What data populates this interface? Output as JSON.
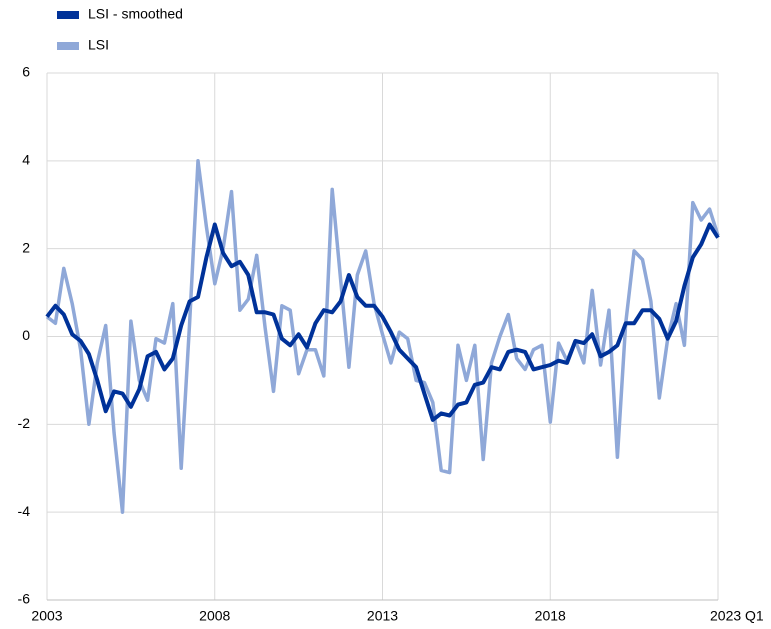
{
  "chart_data": {
    "type": "line",
    "x": [
      2003,
      2003.25,
      2003.5,
      2003.75,
      2004,
      2004.25,
      2004.5,
      2004.75,
      2005,
      2005.25,
      2005.5,
      2005.75,
      2006,
      2006.25,
      2006.5,
      2006.75,
      2007,
      2007.25,
      2007.5,
      2007.75,
      2008,
      2008.25,
      2008.5,
      2008.75,
      2009,
      2009.25,
      2009.5,
      2009.75,
      2010,
      2010.25,
      2010.5,
      2010.75,
      2011,
      2011.25,
      2011.5,
      2011.75,
      2012,
      2012.25,
      2012.5,
      2012.75,
      2013,
      2013.25,
      2013.5,
      2013.75,
      2014,
      2014.25,
      2014.5,
      2014.75,
      2015,
      2015.25,
      2015.5,
      2015.75,
      2016,
      2016.25,
      2016.5,
      2016.75,
      2017,
      2017.25,
      2017.5,
      2017.75,
      2018,
      2018.25,
      2018.5,
      2018.75,
      2019,
      2019.25,
      2019.5,
      2019.75,
      2020,
      2020.25,
      2020.5,
      2020.75,
      2021,
      2021.25,
      2021.5,
      2021.75,
      2022,
      2022.25,
      2022.5,
      2022.75,
      2023
    ],
    "series": [
      {
        "name": "LSI - smoothed",
        "color": "#003299",
        "values": [
          0.45,
          0.7,
          0.5,
          0.05,
          -0.1,
          -0.4,
          -1.0,
          -1.7,
          -1.25,
          -1.3,
          -1.6,
          -1.2,
          -0.45,
          -0.35,
          -0.75,
          -0.5,
          0.25,
          0.8,
          0.9,
          1.8,
          2.55,
          1.9,
          1.6,
          1.7,
          1.4,
          0.55,
          0.55,
          0.5,
          -0.05,
          -0.2,
          0.05,
          -0.25,
          0.3,
          0.6,
          0.55,
          0.8,
          1.4,
          0.9,
          0.7,
          0.7,
          0.45,
          0.1,
          -0.3,
          -0.5,
          -0.7,
          -1.3,
          -1.9,
          -1.75,
          -1.8,
          -1.55,
          -1.5,
          -1.1,
          -1.05,
          -0.7,
          -0.75,
          -0.35,
          -0.3,
          -0.35,
          -0.75,
          -0.7,
          -0.65,
          -0.55,
          -0.6,
          -0.1,
          -0.15,
          0.05,
          -0.45,
          -0.35,
          -0.2,
          0.3,
          0.3,
          0.6,
          0.6,
          0.4,
          -0.05,
          0.35,
          1.15,
          1.8,
          2.1,
          2.55,
          2.25
        ]
      },
      {
        "name": "LSI",
        "color": "#8fa8d8",
        "values": [
          0.45,
          0.3,
          1.55,
          0.75,
          -0.3,
          -2.0,
          -0.6,
          0.25,
          -2.2,
          -4.0,
          0.35,
          -1.0,
          -1.45,
          -0.05,
          -0.15,
          0.75,
          -3.0,
          0.3,
          4.0,
          2.5,
          1.2,
          2.0,
          3.3,
          0.6,
          0.85,
          1.85,
          0.2,
          -1.25,
          0.7,
          0.6,
          -0.85,
          -0.3,
          -0.3,
          -0.9,
          3.35,
          1.3,
          -0.7,
          1.4,
          1.95,
          0.75,
          0.05,
          -0.6,
          0.1,
          -0.05,
          -1.0,
          -1.05,
          -1.5,
          -3.05,
          -3.1,
          -0.2,
          -1.0,
          -0.2,
          -2.8,
          -0.6,
          0.0,
          0.5,
          -0.5,
          -0.75,
          -0.3,
          -0.2,
          -1.95,
          -0.15,
          -0.55,
          -0.1,
          -0.6,
          1.05,
          -0.65,
          0.6,
          -2.75,
          0.3,
          1.95,
          1.75,
          0.8,
          -1.4,
          -0.05,
          0.75,
          -0.2,
          3.05,
          2.65,
          2.9,
          2.3
        ]
      }
    ],
    "xlim": [
      2003,
      2023
    ],
    "xticks": [
      2003,
      2008,
      2013,
      2018,
      {
        "value": 2023,
        "label": "2023 Q1"
      }
    ],
    "ylim": [
      -6,
      6
    ],
    "yticks": [
      -6,
      -4,
      -2,
      0,
      2,
      4,
      6
    ],
    "grid": true
  }
}
